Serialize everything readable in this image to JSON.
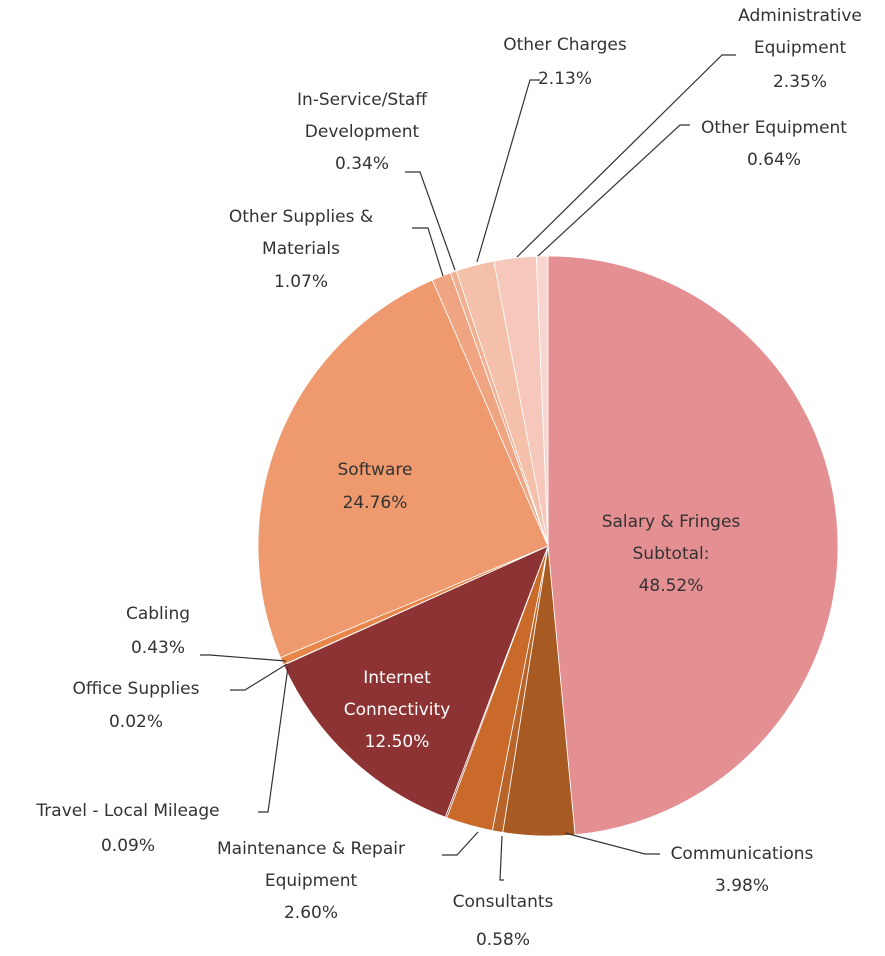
{
  "chart_data": {
    "type": "pie",
    "categories": [
      "Salary & Fringes Subtotal:",
      "Communications",
      "Consultants",
      "Maintenance & Repair Equipment",
      "Travel - Local Mileage",
      "Internet Connectivity",
      "Office Supplies",
      "Cabling",
      "Software",
      "Other Supplies & Materials",
      "In-Service/Staff Development",
      "Other Charges",
      "Administrative Equipment",
      "Other Equipment"
    ],
    "values": [
      48.52,
      3.98,
      0.58,
      2.6,
      0.09,
      12.5,
      0.02,
      0.43,
      24.76,
      1.07,
      0.34,
      2.13,
      2.35,
      0.64
    ],
    "value_labels": [
      "48.52%",
      "3.98%",
      "0.58%",
      "2.60%",
      "0.09%",
      "12.50%",
      "0.02%",
      "0.43%",
      "24.76%",
      "1.07%",
      "0.34%",
      "2.13%",
      "2.35%",
      "0.64%"
    ],
    "colors": [
      "#e48f92",
      "#a85a23",
      "#b8642a",
      "#c96a2a",
      "#8b3030",
      "#8e3334",
      "#e07a3c",
      "#e8864a",
      "#ee9a6e",
      "#f0a582",
      "#f2b092",
      "#f4c0aa",
      "#f6c8bc",
      "#f8d6d0"
    ]
  }
}
